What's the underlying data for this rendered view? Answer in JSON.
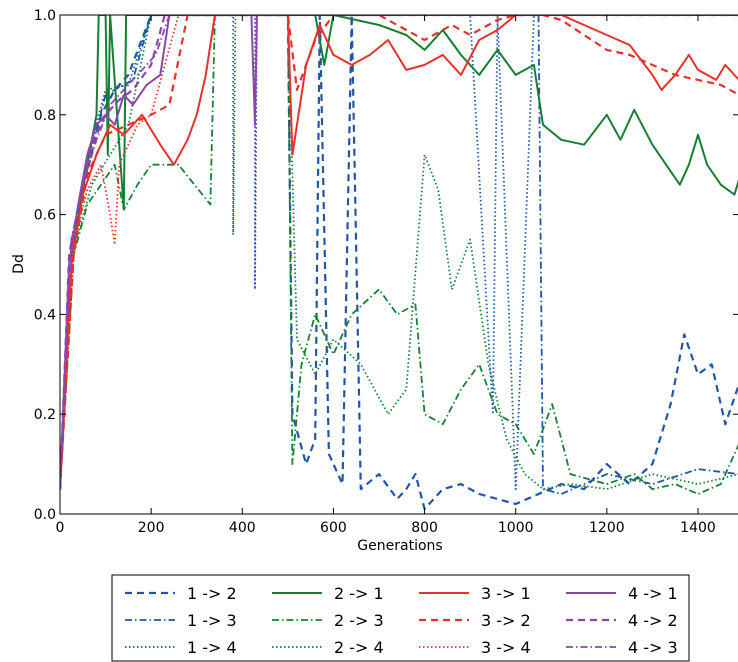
{
  "chart_data": {
    "type": "line",
    "xlabel": "Generations",
    "ylabel": "Dd",
    "xlim": [
      0,
      1490
    ],
    "ylim": [
      0.0,
      1.0
    ],
    "x_ticks": [
      0,
      200,
      400,
      600,
      800,
      1000,
      1200,
      1400
    ],
    "y_ticks": [
      0.0,
      0.2,
      0.4,
      0.6,
      0.8,
      1.0
    ],
    "x_tick_labels": [
      "0",
      "200",
      "400",
      "600",
      "800",
      "1000",
      "1200",
      "1400"
    ],
    "y_tick_labels": [
      "0.0",
      "0.2",
      "0.4",
      "0.6",
      "0.8",
      "1.0"
    ],
    "grid": false,
    "legend_position": "bottom",
    "series": [
      {
        "name": "1 -> 2",
        "color": "#2155a5",
        "style": "dashed",
        "width": 2.2,
        "points": [
          [
            0,
            0.05
          ],
          [
            25,
            0.5
          ],
          [
            50,
            0.65
          ],
          [
            90,
            0.8
          ],
          [
            120,
            0.85
          ],
          [
            150,
            0.88
          ],
          [
            200,
            1.0
          ],
          [
            420,
            1.0
          ],
          [
            500,
            1.0
          ],
          [
            510,
            0.2
          ],
          [
            540,
            0.1
          ],
          [
            560,
            0.15
          ],
          [
            570,
            1.0
          ],
          [
            590,
            0.12
          ],
          [
            620,
            0.06
          ],
          [
            640,
            1.0
          ],
          [
            660,
            0.05
          ],
          [
            700,
            0.08
          ],
          [
            740,
            0.03
          ],
          [
            760,
            0.05
          ],
          [
            780,
            0.08
          ],
          [
            800,
            0.01
          ],
          [
            840,
            0.05
          ],
          [
            880,
            0.06
          ],
          [
            920,
            0.04
          ],
          [
            960,
            0.03
          ],
          [
            1000,
            0.02
          ],
          [
            1050,
            0.04
          ],
          [
            1100,
            0.06
          ],
          [
            1150,
            0.05
          ],
          [
            1200,
            0.1
          ],
          [
            1250,
            0.06
          ],
          [
            1300,
            0.1
          ],
          [
            1340,
            0.22
          ],
          [
            1370,
            0.36
          ],
          [
            1400,
            0.28
          ],
          [
            1430,
            0.3
          ],
          [
            1460,
            0.18
          ],
          [
            1490,
            0.26
          ]
        ]
      },
      {
        "name": "1 -> 3",
        "color": "#2155a5",
        "style": "dashdot",
        "width": 1.8,
        "points": [
          [
            0,
            0.05
          ],
          [
            25,
            0.52
          ],
          [
            60,
            0.7
          ],
          [
            100,
            0.84
          ],
          [
            160,
            0.87
          ],
          [
            200,
            1.0
          ],
          [
            520,
            1.0
          ],
          [
            560,
            1.0
          ],
          [
            600,
            1.0
          ],
          [
            1000,
            1.0
          ],
          [
            1050,
            1.0
          ],
          [
            1060,
            0.05
          ],
          [
            1100,
            0.04
          ],
          [
            1200,
            0.08
          ],
          [
            1300,
            0.06
          ],
          [
            1400,
            0.09
          ],
          [
            1490,
            0.08
          ]
        ]
      },
      {
        "name": "1 -> 4",
        "color": "#2155a5",
        "style": "dotted",
        "width": 1.8,
        "points": [
          [
            0,
            0.05
          ],
          [
            30,
            0.55
          ],
          [
            70,
            0.75
          ],
          [
            100,
            0.85
          ],
          [
            150,
            0.86
          ],
          [
            200,
            1.0
          ],
          [
            380,
            1.0
          ],
          [
            380,
            0.56
          ],
          [
            385,
            1.0
          ],
          [
            428,
            1.0
          ],
          [
            428,
            0.45
          ],
          [
            432,
            1.0
          ],
          [
            700,
            1.0
          ],
          [
            900,
            1.0
          ],
          [
            950,
            0.2
          ],
          [
            960,
            1.0
          ],
          [
            1000,
            0.05
          ],
          [
            1040,
            1.0
          ],
          [
            1490,
            1.0
          ]
        ]
      },
      {
        "name": "2 -> 1",
        "color": "#158034",
        "style": "solid",
        "width": 2.0,
        "points": [
          [
            0,
            0.05
          ],
          [
            25,
            0.5
          ],
          [
            50,
            0.65
          ],
          [
            80,
            0.8
          ],
          [
            85,
            1.0
          ],
          [
            100,
            1.0
          ],
          [
            105,
            0.72
          ],
          [
            110,
            1.0
          ],
          [
            140,
            0.61
          ],
          [
            145,
            1.0
          ],
          [
            160,
            1.0
          ],
          [
            500,
            1.0
          ],
          [
            560,
            1.0
          ],
          [
            580,
            0.9
          ],
          [
            600,
            1.0
          ],
          [
            700,
            0.98
          ],
          [
            760,
            0.96
          ],
          [
            800,
            0.93
          ],
          [
            840,
            0.97
          ],
          [
            880,
            0.92
          ],
          [
            920,
            0.88
          ],
          [
            960,
            0.93
          ],
          [
            1000,
            0.88
          ],
          [
            1040,
            0.9
          ],
          [
            1060,
            0.78
          ],
          [
            1100,
            0.75
          ],
          [
            1150,
            0.74
          ],
          [
            1200,
            0.8
          ],
          [
            1230,
            0.75
          ],
          [
            1260,
            0.81
          ],
          [
            1300,
            0.74
          ],
          [
            1330,
            0.7
          ],
          [
            1360,
            0.66
          ],
          [
            1380,
            0.7
          ],
          [
            1400,
            0.76
          ],
          [
            1420,
            0.7
          ],
          [
            1450,
            0.66
          ],
          [
            1480,
            0.64
          ],
          [
            1490,
            0.67
          ]
        ]
      },
      {
        "name": "2 -> 3",
        "color": "#158034",
        "style": "dashdot",
        "width": 1.8,
        "points": [
          [
            0,
            0.05
          ],
          [
            30,
            0.52
          ],
          [
            60,
            0.62
          ],
          [
            90,
            0.66
          ],
          [
            120,
            0.7
          ],
          [
            140,
            0.61
          ],
          [
            170,
            0.66
          ],
          [
            200,
            0.7
          ],
          [
            260,
            0.7
          ],
          [
            330,
            0.62
          ],
          [
            340,
            1.0
          ],
          [
            500,
            1.0
          ],
          [
            510,
            0.1
          ],
          [
            530,
            0.3
          ],
          [
            560,
            0.4
          ],
          [
            600,
            0.32
          ],
          [
            640,
            0.4
          ],
          [
            700,
            0.45
          ],
          [
            740,
            0.4
          ],
          [
            780,
            0.42
          ],
          [
            800,
            0.2
          ],
          [
            840,
            0.18
          ],
          [
            880,
            0.25
          ],
          [
            920,
            0.3
          ],
          [
            960,
            0.2
          ],
          [
            1000,
            0.18
          ],
          [
            1040,
            0.12
          ],
          [
            1080,
            0.22
          ],
          [
            1120,
            0.08
          ],
          [
            1200,
            0.06
          ],
          [
            1260,
            0.08
          ],
          [
            1300,
            0.05
          ],
          [
            1350,
            0.06
          ],
          [
            1400,
            0.04
          ],
          [
            1450,
            0.06
          ],
          [
            1490,
            0.14
          ]
        ]
      },
      {
        "name": "2 -> 4",
        "color": "#158034",
        "style": "dotted",
        "width": 1.8,
        "points": [
          [
            0,
            0.05
          ],
          [
            30,
            0.53
          ],
          [
            70,
            0.66
          ],
          [
            110,
            0.72
          ],
          [
            150,
            0.78
          ],
          [
            200,
            1.0
          ],
          [
            500,
            1.0
          ],
          [
            520,
            0.35
          ],
          [
            560,
            0.28
          ],
          [
            600,
            0.35
          ],
          [
            660,
            0.3
          ],
          [
            720,
            0.2
          ],
          [
            760,
            0.25
          ],
          [
            800,
            0.72
          ],
          [
            830,
            0.65
          ],
          [
            860,
            0.45
          ],
          [
            900,
            0.55
          ],
          [
            940,
            0.3
          ],
          [
            980,
            0.15
          ],
          [
            1020,
            0.08
          ],
          [
            1060,
            0.05
          ],
          [
            1120,
            0.06
          ],
          [
            1200,
            0.05
          ],
          [
            1300,
            0.08
          ],
          [
            1400,
            0.06
          ],
          [
            1490,
            0.08
          ]
        ]
      },
      {
        "name": "3 -> 1",
        "color": "#e8312a",
        "style": "solid",
        "width": 2.0,
        "points": [
          [
            0,
            0.05
          ],
          [
            25,
            0.5
          ],
          [
            50,
            0.64
          ],
          [
            80,
            0.72
          ],
          [
            110,
            0.78
          ],
          [
            140,
            0.76
          ],
          [
            180,
            0.8
          ],
          [
            220,
            0.74
          ],
          [
            250,
            0.7
          ],
          [
            280,
            0.75
          ],
          [
            300,
            0.8
          ],
          [
            320,
            0.88
          ],
          [
            340,
            1.0
          ],
          [
            500,
            1.0
          ],
          [
            510,
            0.72
          ],
          [
            540,
            0.9
          ],
          [
            570,
            0.98
          ],
          [
            600,
            0.92
          ],
          [
            640,
            0.9
          ],
          [
            680,
            0.92
          ],
          [
            720,
            0.95
          ],
          [
            760,
            0.89
          ],
          [
            800,
            0.9
          ],
          [
            840,
            0.92
          ],
          [
            880,
            0.88
          ],
          [
            920,
            0.95
          ],
          [
            960,
            0.97
          ],
          [
            1000,
            1.0
          ],
          [
            1100,
            1.0
          ],
          [
            1150,
            0.98
          ],
          [
            1200,
            0.96
          ],
          [
            1250,
            0.94
          ],
          [
            1300,
            0.88
          ],
          [
            1320,
            0.85
          ],
          [
            1350,
            0.88
          ],
          [
            1380,
            0.92
          ],
          [
            1400,
            0.89
          ],
          [
            1440,
            0.87
          ],
          [
            1460,
            0.9
          ],
          [
            1490,
            0.87
          ]
        ]
      },
      {
        "name": "3 -> 2",
        "color": "#e8312a",
        "style": "dashed",
        "width": 2.2,
        "points": [
          [
            0,
            0.05
          ],
          [
            30,
            0.52
          ],
          [
            60,
            0.68
          ],
          [
            100,
            0.76
          ],
          [
            150,
            0.78
          ],
          [
            200,
            0.8
          ],
          [
            240,
            0.82
          ],
          [
            280,
            1.0
          ],
          [
            500,
            1.0
          ],
          [
            520,
            0.85
          ],
          [
            560,
            0.95
          ],
          [
            600,
            1.0
          ],
          [
            700,
            1.0
          ],
          [
            760,
            0.97
          ],
          [
            800,
            0.95
          ],
          [
            860,
            0.98
          ],
          [
            900,
            0.96
          ],
          [
            960,
            0.99
          ],
          [
            1000,
            1.0
          ],
          [
            1060,
            1.0
          ],
          [
            1100,
            0.99
          ],
          [
            1150,
            0.96
          ],
          [
            1200,
            0.93
          ],
          [
            1250,
            0.92
          ],
          [
            1300,
            0.9
          ],
          [
            1350,
            0.88
          ],
          [
            1400,
            0.87
          ],
          [
            1450,
            0.86
          ],
          [
            1490,
            0.84
          ]
        ]
      },
      {
        "name": "3 -> 4",
        "color": "#e8312a",
        "style": "dotted",
        "width": 1.8,
        "points": [
          [
            0,
            0.05
          ],
          [
            30,
            0.54
          ],
          [
            60,
            0.65
          ],
          [
            90,
            0.7
          ],
          [
            110,
            0.6
          ],
          [
            120,
            0.54
          ],
          [
            130,
            0.7
          ],
          [
            170,
            0.78
          ],
          [
            200,
            0.8
          ],
          [
            260,
            1.0
          ],
          [
            500,
            1.0
          ],
          [
            1490,
            1.0
          ]
        ]
      },
      {
        "name": "4 -> 1",
        "color": "#8b46a8",
        "style": "solid",
        "width": 2.0,
        "points": [
          [
            0,
            0.05
          ],
          [
            20,
            0.5
          ],
          [
            40,
            0.62
          ],
          [
            60,
            0.72
          ],
          [
            80,
            0.78
          ],
          [
            100,
            0.8
          ],
          [
            120,
            0.78
          ],
          [
            140,
            0.84
          ],
          [
            160,
            0.82
          ],
          [
            190,
            0.86
          ],
          [
            220,
            0.88
          ],
          [
            240,
            1.0
          ],
          [
            420,
            1.0
          ],
          [
            428,
            0.78
          ],
          [
            432,
            1.0
          ],
          [
            1490,
            1.0
          ]
        ]
      },
      {
        "name": "4 -> 2",
        "color": "#8b46a8",
        "style": "dashed",
        "width": 2.2,
        "points": [
          [
            0,
            0.05
          ],
          [
            20,
            0.52
          ],
          [
            45,
            0.64
          ],
          [
            70,
            0.74
          ],
          [
            100,
            0.8
          ],
          [
            130,
            0.83
          ],
          [
            160,
            0.85
          ],
          [
            200,
            0.9
          ],
          [
            230,
            1.0
          ],
          [
            1490,
            1.0
          ]
        ]
      },
      {
        "name": "4 -> 3",
        "color": "#8b46a8",
        "style": "dashdot",
        "width": 1.8,
        "points": [
          [
            0,
            0.05
          ],
          [
            25,
            0.55
          ],
          [
            50,
            0.66
          ],
          [
            80,
            0.75
          ],
          [
            110,
            0.82
          ],
          [
            140,
            0.85
          ],
          [
            170,
            0.88
          ],
          [
            210,
            0.92
          ],
          [
            240,
            1.0
          ],
          [
            1490,
            1.0
          ]
        ]
      }
    ]
  }
}
